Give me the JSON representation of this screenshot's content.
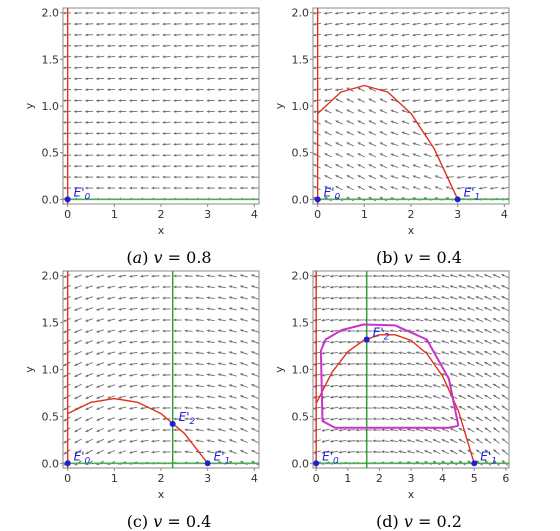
{
  "colors": {
    "arrow": "#6e6e6e",
    "nullcline_red": "#e0301e",
    "nullcline_x_axis": "#4caf50",
    "nullcline_vertical": "#2e9a2e",
    "y_axis_line": "#e0301e",
    "limit_cycle": "#cc33cc",
    "equilibrium": "#1f1fd6",
    "frame": "#888888"
  },
  "chart_data": [
    {
      "type": "scatter",
      "panel": "a",
      "caption": "(a) v = 0.8",
      "caption_parts": [
        "(",
        "a",
        ") ",
        "v",
        " = 0.8"
      ],
      "xlabel": "x",
      "ylabel": "y",
      "xlim": [
        -0.1,
        4.1
      ],
      "ylim": [
        -0.05,
        2.05
      ],
      "xticks": [
        0,
        1,
        2,
        3,
        4
      ],
      "yticks": [
        "0.0",
        "0.5",
        "1.0",
        "1.5",
        "2.0"
      ],
      "vector_field": "arrows mostly pointing left",
      "curves": [],
      "vertical_nullcline": null,
      "equilibria": [
        {
          "label": "E'",
          "sub": "0",
          "x": 0,
          "y": 0
        }
      ]
    },
    {
      "type": "scatter",
      "panel": "b",
      "caption": "(b) v = 0.4",
      "caption_parts": [
        "(b) ",
        "",
        "",
        "v",
        " = 0.4"
      ],
      "xlabel": "x",
      "ylabel": "y",
      "xlim": [
        -0.1,
        4.1
      ],
      "ylim": [
        -0.05,
        2.05
      ],
      "xticks": [
        0,
        1,
        2,
        3,
        4
      ],
      "yticks": [
        "0.0",
        "0.5",
        "1.0",
        "1.5",
        "2.0"
      ],
      "vector_field": "arrows pointing left with upward drift inside the parabola",
      "curves": [
        {
          "name": "",
          "kind": "parabola",
          "x": [
            0,
            0.5,
            1,
            1.5,
            2,
            2.5,
            3
          ],
          "y": [
            0.92,
            1.15,
            1.22,
            1.15,
            0.92,
            0.54,
            0.0
          ]
        }
      ],
      "vertical_nullcline": null,
      "equilibria": [
        {
          "label": "E'",
          "sub": "0",
          "x": 0,
          "y": 0
        },
        {
          "label": "E'",
          "sub": "1",
          "x": 3,
          "y": 0
        }
      ]
    },
    {
      "type": "scatter",
      "panel": "c",
      "caption": "(c) v = 0.4",
      "caption_parts": [
        "(c) ",
        "",
        "",
        "v",
        " = 0.4"
      ],
      "xlabel": "x",
      "ylabel": "y",
      "xlim": [
        -0.1,
        4.1
      ],
      "ylim": [
        -0.05,
        2.05
      ],
      "xticks": [
        0,
        1,
        2,
        3,
        4
      ],
      "yticks": [
        "0.0",
        "0.5",
        "1.0",
        "1.5",
        "2.0"
      ],
      "vector_field": "arrows pointing left, rotating around interior equilibrium",
      "curves": [
        {
          "name": "",
          "kind": "parabola",
          "x": [
            0,
            0.5,
            1,
            1.5,
            2,
            2.5,
            3
          ],
          "y": [
            0.53,
            0.65,
            0.69,
            0.65,
            0.53,
            0.32,
            0.0
          ]
        }
      ],
      "vertical_nullcline": 2.25,
      "equilibria": [
        {
          "label": "E'",
          "sub": "0",
          "x": 0,
          "y": 0
        },
        {
          "label": "E'",
          "sub": "1",
          "x": 3,
          "y": 0
        },
        {
          "label": "E'",
          "sub": "2",
          "x": 2.25,
          "y": 0.42
        }
      ]
    },
    {
      "type": "scatter",
      "panel": "d",
      "caption": "(d) v = 0.2",
      "caption_parts": [
        "(d) ",
        "",
        "",
        "v",
        " = 0.2"
      ],
      "xlabel": "x",
      "ylabel": "y",
      "xlim": [
        -0.1,
        6.1
      ],
      "ylim": [
        -0.05,
        2.05
      ],
      "xticks": [
        0,
        1,
        2,
        3,
        4,
        5,
        6
      ],
      "yticks": [
        "0.0",
        "0.5",
        "1.0",
        "1.5",
        "2.0"
      ],
      "vector_field": "arrows pointing left, circulating around interior equilibrium",
      "curves": [
        {
          "name": "",
          "kind": "parabola",
          "x": [
            0,
            0.5,
            1,
            1.5,
            2,
            2.5,
            3,
            3.5,
            4,
            4.5,
            5
          ],
          "y": [
            0.64,
            0.97,
            1.19,
            1.31,
            1.37,
            1.37,
            1.31,
            1.17,
            0.93,
            0.56,
            0.0
          ]
        },
        {
          "name": "",
          "kind": "limit_cycle",
          "x": [
            4.5,
            4.2,
            3.5,
            2.5,
            1.5,
            0.6,
            0.2,
            0.15,
            0.3,
            0.8,
            1.5,
            2.5,
            3.5,
            4.2,
            4.5
          ],
          "y": [
            0.4,
            0.38,
            0.38,
            0.38,
            0.38,
            0.38,
            0.45,
            1.2,
            1.32,
            1.42,
            1.48,
            1.47,
            1.32,
            0.9,
            0.4
          ]
        }
      ],
      "vertical_nullcline": 1.6,
      "equilibria": [
        {
          "label": "E'",
          "sub": "0",
          "x": 0,
          "y": 0
        },
        {
          "label": "E'",
          "sub": "1",
          "x": 5,
          "y": 0
        },
        {
          "label": "E'",
          "sub": "2",
          "x": 1.6,
          "y": 1.32
        }
      ]
    }
  ]
}
